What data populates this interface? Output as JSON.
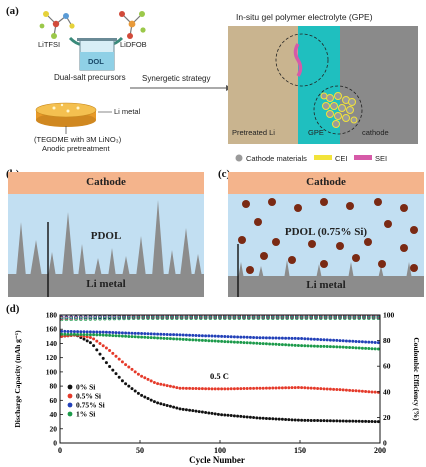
{
  "panel_a": {
    "letter": "(a)",
    "salt1": "LiTFSI",
    "salt2": "LiDFOB",
    "solvent": "DOL",
    "precursor_caption": "Dual-salt precursors",
    "strategy_text": "Synergetic strategy",
    "li_metal_label": "Li metal",
    "pretreat_line1": "(TEGDME with 3M LiNO₃)",
    "pretreat_line2": "Anodic pretreatment",
    "gpe_title": "In-situ gel polymer electrolyte (GPE)",
    "zone_li": "Pretreated Li",
    "zone_gpe": "GPE",
    "zone_cathode": "cathode",
    "legend": [
      {
        "label": "Cathode materials",
        "color": "#9a9a9a",
        "shape": "circle"
      },
      {
        "label": "CEI",
        "color": "#f2e33a",
        "shape": "bar"
      },
      {
        "label": "SEI",
        "color": "#d65aa8",
        "shape": "bar"
      }
    ]
  },
  "panel_b": {
    "letter": "(b)",
    "top": "Cathode",
    "middle": "PDOL",
    "bottom": "Li metal"
  },
  "panel_c": {
    "letter": "(c)",
    "top": "Cathode",
    "middle": "PDOL (0.75% Si)",
    "bottom": "Li metal"
  },
  "panel_d": {
    "letter": "(d)",
    "rate_label": "0.5 C"
  },
  "chart_data": {
    "type": "scatter",
    "xlabel": "Cycle Number",
    "ylabel_left": "Discharge Capacity (mAh g⁻¹)",
    "ylabel_right": "Coulombic Efficiency (%)",
    "xlim": [
      0,
      200
    ],
    "ylim_left": [
      0,
      180
    ],
    "ylim_right": [
      0,
      100
    ],
    "x_ticks": [
      "0",
      "50",
      "100",
      "150",
      "200"
    ],
    "y_left_ticks": [
      "0",
      "20",
      "40",
      "60",
      "80",
      "100",
      "120",
      "140",
      "160",
      "180"
    ],
    "y_right_ticks": [
      "0",
      "20",
      "40",
      "60",
      "80",
      "100"
    ],
    "legend_position": "lower-left",
    "series": [
      {
        "name": "0% Si",
        "color": "#111111",
        "capacity": [
          [
            1,
            150
          ],
          [
            10,
            152
          ],
          [
            20,
            140
          ],
          [
            30,
            110
          ],
          [
            40,
            85
          ],
          [
            50,
            68
          ],
          [
            60,
            57
          ],
          [
            75,
            48
          ],
          [
            100,
            40
          ],
          [
            125,
            35
          ],
          [
            150,
            32
          ],
          [
            175,
            31
          ],
          [
            200,
            30
          ]
        ],
        "efficiency": [
          [
            1,
            98
          ],
          [
            50,
            99
          ],
          [
            100,
            99
          ],
          [
            150,
            99
          ],
          [
            200,
            99
          ]
        ]
      },
      {
        "name": "0.5% Si",
        "color": "#e53a2a",
        "capacity": [
          [
            1,
            150
          ],
          [
            10,
            152
          ],
          [
            20,
            148
          ],
          [
            30,
            132
          ],
          [
            40,
            112
          ],
          [
            50,
            95
          ],
          [
            60,
            84
          ],
          [
            75,
            77
          ],
          [
            100,
            76
          ],
          [
            125,
            77
          ],
          [
            150,
            78
          ],
          [
            175,
            75
          ],
          [
            200,
            71
          ]
        ],
        "efficiency": [
          [
            1,
            98
          ],
          [
            50,
            99
          ],
          [
            100,
            99
          ],
          [
            150,
            99
          ],
          [
            200,
            99
          ]
        ]
      },
      {
        "name": "0.75% Si",
        "color": "#2240b8",
        "capacity": [
          [
            1,
            157
          ],
          [
            25,
            156
          ],
          [
            50,
            154
          ],
          [
            75,
            152
          ],
          [
            100,
            150
          ],
          [
            125,
            148
          ],
          [
            150,
            147
          ],
          [
            175,
            144
          ],
          [
            200,
            141
          ]
        ],
        "efficiency": [
          [
            1,
            99
          ],
          [
            50,
            99
          ],
          [
            100,
            99
          ],
          [
            150,
            99
          ],
          [
            200,
            99
          ]
        ]
      },
      {
        "name": "1% Si",
        "color": "#1c9a4a",
        "capacity": [
          [
            1,
            153
          ],
          [
            25,
            152
          ],
          [
            50,
            149
          ],
          [
            75,
            146
          ],
          [
            100,
            143
          ],
          [
            125,
            140
          ],
          [
            150,
            137
          ],
          [
            175,
            135
          ],
          [
            200,
            132
          ]
        ],
        "efficiency": [
          [
            1,
            98
          ],
          [
            50,
            99
          ],
          [
            100,
            99
          ],
          [
            150,
            99
          ],
          [
            200,
            99
          ]
        ]
      }
    ]
  }
}
